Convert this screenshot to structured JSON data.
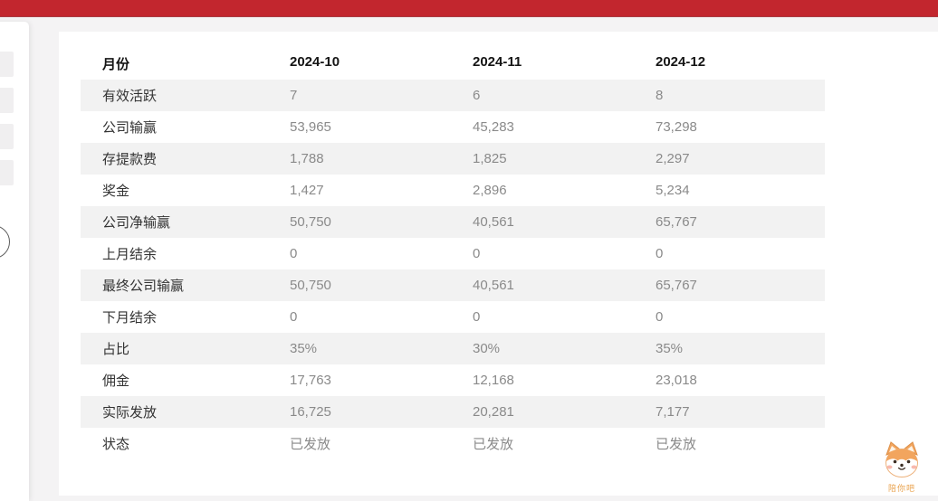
{
  "topbar": {
    "color": "#c2262e"
  },
  "report_table": {
    "month_header_label": "月份",
    "months": [
      "2024-10",
      "2024-11",
      "2024-12"
    ],
    "rows": [
      {
        "label": "有效活跃",
        "values": [
          "7",
          "6",
          "8"
        ]
      },
      {
        "label": "公司输赢",
        "values": [
          "53,965",
          "45,283",
          "73,298"
        ]
      },
      {
        "label": "存提款费",
        "values": [
          "1,788",
          "1,825",
          "2,297"
        ]
      },
      {
        "label": "奖金",
        "values": [
          "1,427",
          "2,896",
          "5,234"
        ]
      },
      {
        "label": "公司净输赢",
        "values": [
          "50,750",
          "40,561",
          "65,767"
        ]
      },
      {
        "label": "上月结余",
        "values": [
          "0",
          "0",
          "0"
        ]
      },
      {
        "label": "最终公司输赢",
        "values": [
          "50,750",
          "40,561",
          "65,767"
        ]
      },
      {
        "label": "下月结余",
        "values": [
          "0",
          "0",
          "0"
        ]
      },
      {
        "label": "占比",
        "values": [
          "35%",
          "30%",
          "35%"
        ]
      },
      {
        "label": "佣金",
        "values": [
          "17,763",
          "12,168",
          "23,018"
        ]
      },
      {
        "label": "实际发放",
        "values": [
          "16,725",
          "20,281",
          "7,177"
        ]
      },
      {
        "label": "状态",
        "values": [
          "已发放",
          "已发放",
          "已发放"
        ]
      }
    ]
  },
  "mascot": {
    "caption": "陪你吧"
  },
  "colors": {
    "topbar_red": "#c2262e",
    "row_stripe": "#f2f2f2",
    "value_text": "#8a8a8a",
    "mascot_orange": "#f2a55e"
  }
}
